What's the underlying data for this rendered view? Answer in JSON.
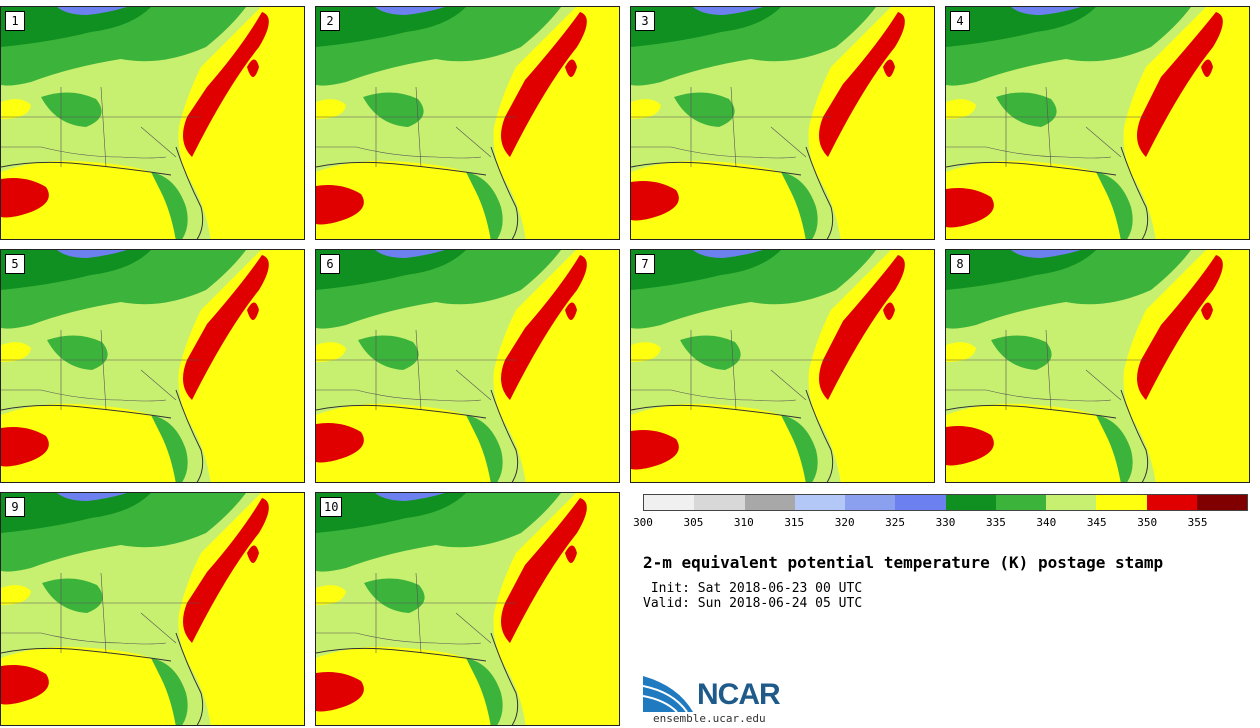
{
  "panels": [
    {
      "label": "1"
    },
    {
      "label": "2"
    },
    {
      "label": "3"
    },
    {
      "label": "4"
    },
    {
      "label": "5"
    },
    {
      "label": "6"
    },
    {
      "label": "7"
    },
    {
      "label": "8"
    },
    {
      "label": "9"
    },
    {
      "label": "10"
    }
  ],
  "colorbar": {
    "colors": [
      "#f0f0f0",
      "#d8d8d8",
      "#a8a8a8",
      "#b4c8f8",
      "#8ca0f0",
      "#6c80f0",
      "#109020",
      "#3cb43c",
      "#c8f070",
      "#ffff10",
      "#e00000",
      "#800000"
    ],
    "ticks": [
      "300",
      "305",
      "310",
      "315",
      "320",
      "325",
      "330",
      "335",
      "340",
      "345",
      "350",
      "355"
    ]
  },
  "title": "2-m equivalent potential temperature (K) postage stamp",
  "init": " Init: Sat 2018-06-23 00 UTC",
  "valid": "Valid: Sun 2018-06-24 05 UTC",
  "logo": {
    "text": "NCAR",
    "url": "ensemble.ucar.edu"
  }
}
